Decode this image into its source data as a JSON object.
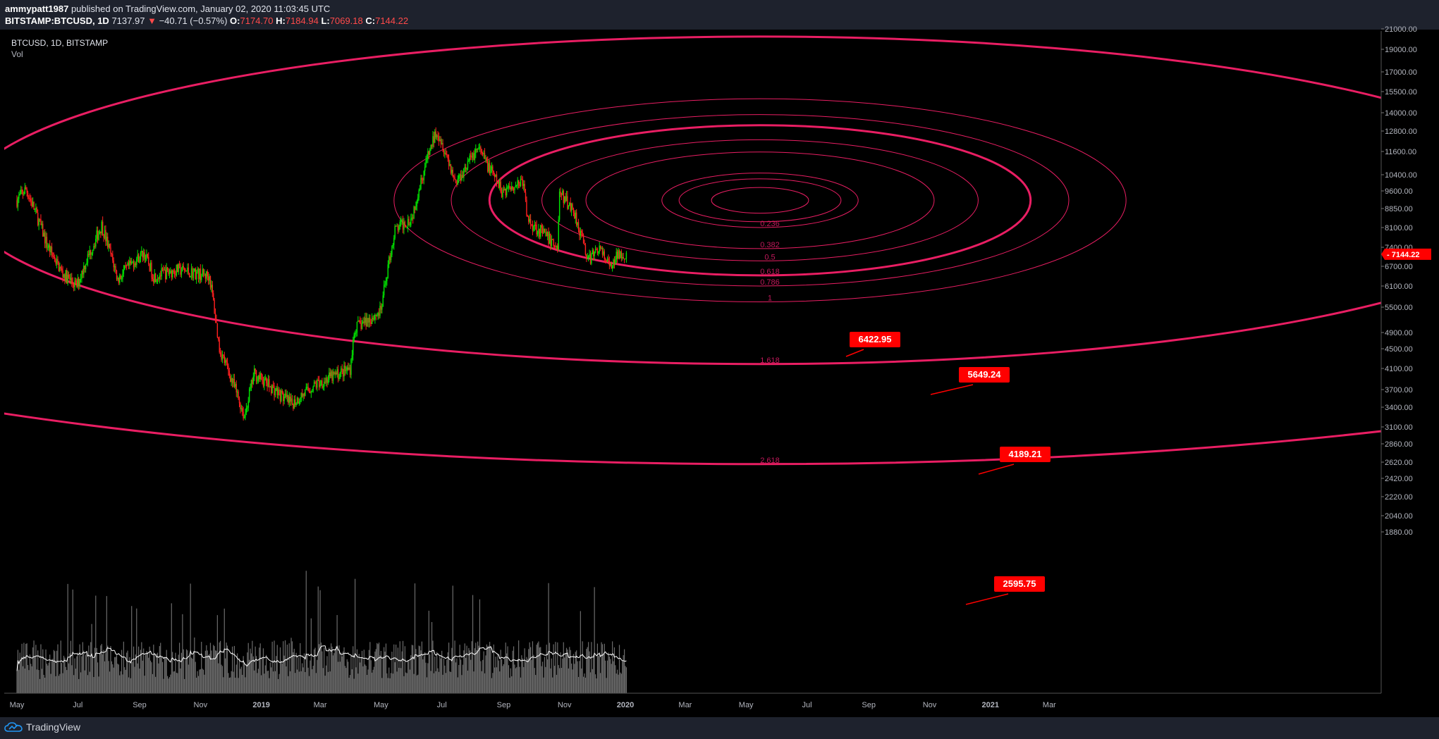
{
  "header": {
    "author": "ammypatt1987",
    "published_text": "published on TradingView.com, January 02, 2020 11:03:45 UTC",
    "symbol": "BITSTAMP:BTCUSD, 1D",
    "last": "7137.97",
    "change_arrow": "▼",
    "change": "−40.71 (−0.57%)",
    "o_label": "O:",
    "o": "7174.70",
    "h_label": "H:",
    "h": "7184.94",
    "l_label": "L:",
    "l": "7069.18",
    "c_label": "C:",
    "c": "7144.22"
  },
  "legend": {
    "title": "BTCUSD, 1D, BITSTAMP",
    "indicator": "Vol"
  },
  "footer": {
    "brand": "TradingView"
  },
  "colors": {
    "background": "#000000",
    "up": "#00e600",
    "down": "#ff2020",
    "ellipse": "#e91e63",
    "label_bg": "#ff0000",
    "volume": "#6b6b6b",
    "volume_ma": "#ffffff"
  },
  "chart_data": {
    "type": "candlestick",
    "price_axis_ticks": [
      "21000.00",
      "19000.00",
      "17000.00",
      "15500.00",
      "14000.00",
      "12800.00",
      "11600.00",
      "10400.00",
      "9600.00",
      "8850.00",
      "8100.00",
      "7400.00",
      "6700.00",
      "6100.00",
      "5500.00",
      "4900.00",
      "4500.00",
      "4100.00",
      "3700.00",
      "3400.00",
      "3100.00",
      "2860.00",
      "2620.00",
      "2420.00",
      "2220.00",
      "2040.00",
      "1880.00"
    ],
    "time_axis_ticks": [
      "May",
      "Jul",
      "Sep",
      "Nov",
      "2019",
      "Mar",
      "May",
      "Jul",
      "Sep",
      "Nov",
      "2020",
      "Mar",
      "May",
      "Jul",
      "Sep",
      "Nov",
      "2021",
      "Mar"
    ],
    "last_price_tag": "7144.22",
    "fib_levels": [
      "0.236",
      "0.382",
      "0.5",
      "0.618",
      "0.786",
      "1",
      "1.618",
      "2.618"
    ],
    "price_labels": [
      "6422.95",
      "5649.24",
      "4189.21",
      "2595.75"
    ],
    "price_path": [
      [
        "2018-05-01",
        9200
      ],
      [
        "2018-05-10",
        9700
      ],
      [
        "2018-05-31",
        7500
      ],
      [
        "2018-06-15",
        6500
      ],
      [
        "2018-06-30",
        6100
      ],
      [
        "2018-07-25",
        8200
      ],
      [
        "2018-08-10",
        6300
      ],
      [
        "2018-09-05",
        7200
      ],
      [
        "2018-09-15",
        6400
      ],
      [
        "2018-10-10",
        6600
      ],
      [
        "2018-11-10",
        6400
      ],
      [
        "2018-11-20",
        4500
      ],
      [
        "2018-12-15",
        3250
      ],
      [
        "2018-12-25",
        4000
      ],
      [
        "2019-01-31",
        3450
      ],
      [
        "2019-02-25",
        3800
      ],
      [
        "2019-03-31",
        4100
      ],
      [
        "2019-04-05",
        5000
      ],
      [
        "2019-05-01",
        5400
      ],
      [
        "2019-05-15",
        8000
      ],
      [
        "2019-06-01",
        8500
      ],
      [
        "2019-06-26",
        12900
      ],
      [
        "2019-07-15",
        10000
      ],
      [
        "2019-08-06",
        11800
      ],
      [
        "2019-08-30",
        9600
      ],
      [
        "2019-09-20",
        10100
      ],
      [
        "2019-09-25",
        8400
      ],
      [
        "2019-10-25",
        7400
      ],
      [
        "2019-10-27",
        9500
      ],
      [
        "2019-11-10",
        8800
      ],
      [
        "2019-11-25",
        6900
      ],
      [
        "2019-12-05",
        7400
      ],
      [
        "2019-12-18",
        6600
      ],
      [
        "2019-12-25",
        7200
      ],
      [
        "2020-01-02",
        7144
      ]
    ]
  }
}
